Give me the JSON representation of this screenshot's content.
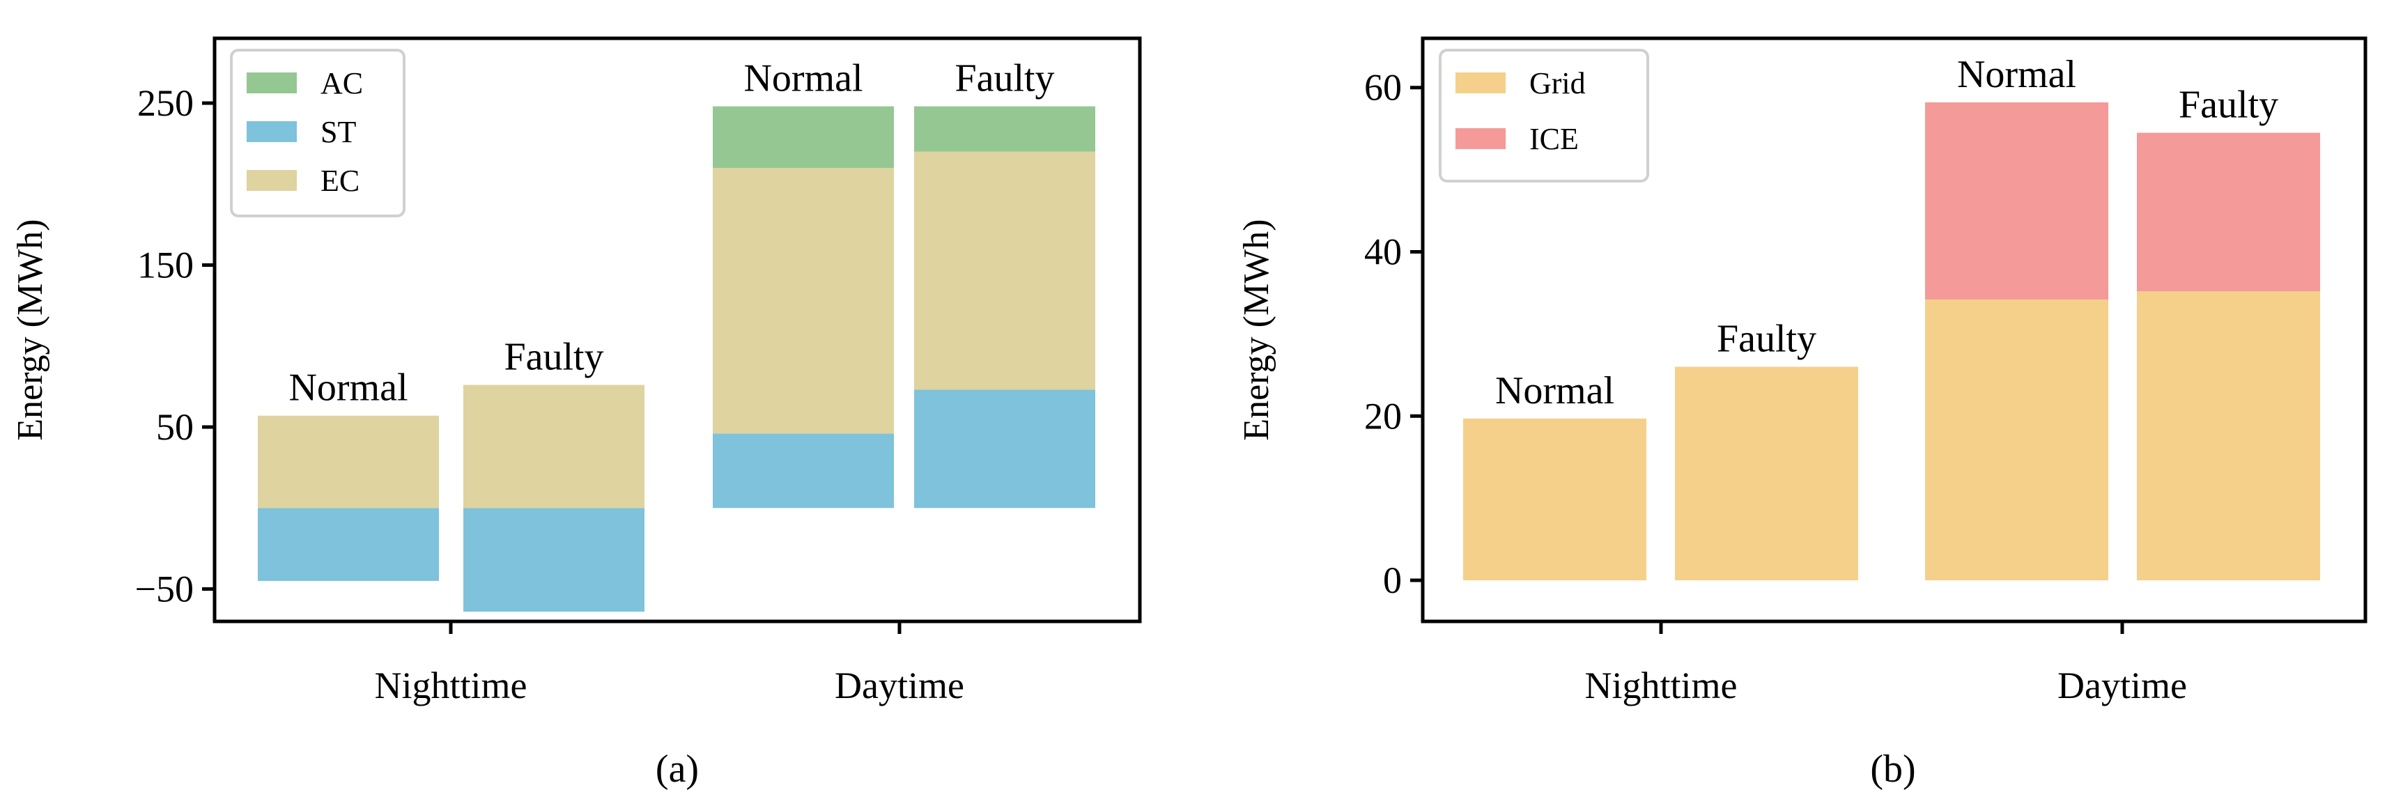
{
  "chart_data": [
    {
      "type": "bar",
      "stacked": true,
      "caption": "(a)",
      "ylabel": "Energy (MWh)",
      "ylim": [
        -70,
        290
      ],
      "yticks": [
        -50,
        50,
        150,
        250
      ],
      "ytick_labels": [
        "−50",
        "50",
        "150",
        "250"
      ],
      "categories": [
        "Nighttime",
        "Daytime"
      ],
      "legend_position": "top-left",
      "legend": [
        {
          "name": "AC",
          "color": "#95c793"
        },
        {
          "name": "ST",
          "color": "#7ec2db"
        },
        {
          "name": "EC",
          "color": "#dfd39f"
        }
      ],
      "bars": [
        {
          "group": "Nighttime",
          "label": "Normal",
          "segments": [
            {
              "series": "ST",
              "value": -45
            },
            {
              "series": "EC",
              "value": 57
            }
          ]
        },
        {
          "group": "Nighttime",
          "label": "Faulty",
          "segments": [
            {
              "series": "ST",
              "value": -64
            },
            {
              "series": "EC",
              "value": 76
            }
          ]
        },
        {
          "group": "Daytime",
          "label": "Normal",
          "segments": [
            {
              "series": "ST",
              "value": 46
            },
            {
              "series": "EC",
              "value": 164
            },
            {
              "series": "AC",
              "value": 38
            }
          ]
        },
        {
          "group": "Daytime",
          "label": "Faulty",
          "segments": [
            {
              "series": "ST",
              "value": 73
            },
            {
              "series": "EC",
              "value": 147
            },
            {
              "series": "AC",
              "value": 28
            }
          ]
        }
      ]
    },
    {
      "type": "bar",
      "stacked": true,
      "caption": "(b)",
      "ylabel": "Energy (MWh)",
      "ylim": [
        -5,
        66
      ],
      "yticks": [
        0,
        20,
        40,
        60
      ],
      "ytick_labels": [
        "0",
        "20",
        "40",
        "60"
      ],
      "categories": [
        "Nighttime",
        "Daytime"
      ],
      "legend_position": "top-left",
      "legend": [
        {
          "name": "Grid",
          "color": "#f5d08a"
        },
        {
          "name": "ICE",
          "color": "#f49a98"
        }
      ],
      "bars": [
        {
          "group": "Nighttime",
          "label": "Normal",
          "segments": [
            {
              "series": "Grid",
              "value": 19.7
            }
          ]
        },
        {
          "group": "Nighttime",
          "label": "Faulty",
          "segments": [
            {
              "series": "Grid",
              "value": 26
            }
          ]
        },
        {
          "group": "Daytime",
          "label": "Normal",
          "segments": [
            {
              "series": "Grid",
              "value": 34.2
            },
            {
              "series": "ICE",
              "value": 24
            }
          ]
        },
        {
          "group": "Daytime",
          "label": "Faulty",
          "segments": [
            {
              "series": "Grid",
              "value": 35.2
            },
            {
              "series": "ICE",
              "value": 19.3
            }
          ]
        }
      ]
    }
  ]
}
